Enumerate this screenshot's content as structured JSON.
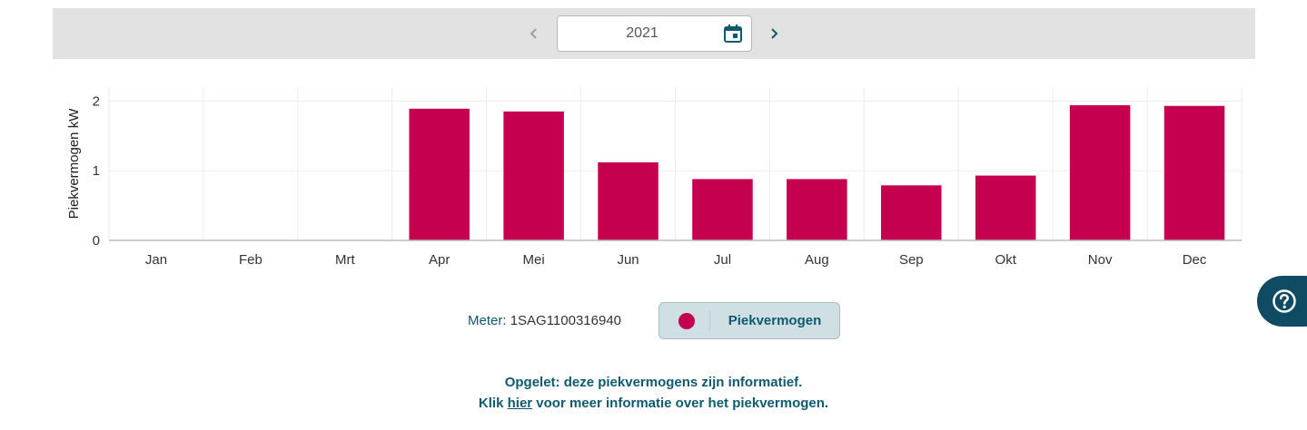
{
  "toolbar": {
    "year": "2021",
    "prev_icon": "chevron-left-icon",
    "next_icon": "chevron-right-icon",
    "calendar_icon": "calendar-icon"
  },
  "colors": {
    "bar": "#c4004f",
    "brand": "#0f5a70",
    "toolbar_bg": "#e2e2e2"
  },
  "chart_data": {
    "type": "bar",
    "categories": [
      "Jan",
      "Feb",
      "Mrt",
      "Apr",
      "Mei",
      "Jun",
      "Jul",
      "Aug",
      "Sep",
      "Okt",
      "Nov",
      "Dec"
    ],
    "series": [
      {
        "name": "Piekvermogen",
        "values": [
          0,
          0,
          0,
          1.89,
          1.85,
          1.12,
          0.88,
          0.88,
          0.79,
          0.93,
          1.94,
          1.93
        ]
      }
    ],
    "ylabel": "Piekvermogen kW",
    "xlabel": "",
    "ylim": [
      0,
      2.2
    ],
    "yticks": [
      0,
      1,
      2
    ],
    "grid": true
  },
  "legend": {
    "meter_label": "Meter",
    "meter_value": "1SAG1100316940",
    "series_label": "Piekvermogen"
  },
  "notes": {
    "line1": "Opgelet: deze piekvermogens zijn informatief.",
    "line2_prefix": "Klik",
    "line2_link": "hier",
    "line2_suffix": "voor meer informatie over het piekvermogen."
  },
  "help": {
    "icon": "help-icon"
  }
}
